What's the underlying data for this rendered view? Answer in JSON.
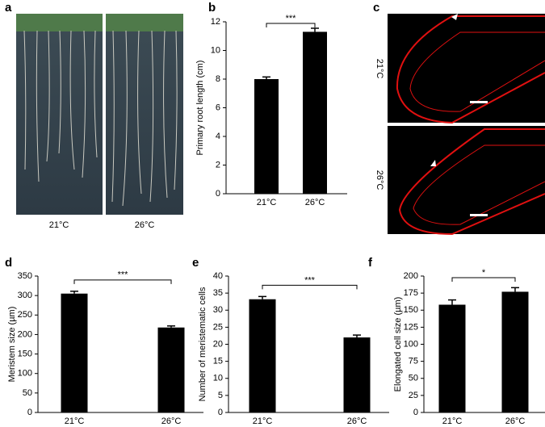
{
  "panel_a": {
    "label": "a",
    "captions": [
      "21°C",
      "26°C"
    ]
  },
  "panel_c": {
    "label": "c",
    "captions": [
      "21°C",
      "26°C"
    ]
  },
  "chart_data": [
    {
      "type": "bar",
      "label": "b",
      "y_label": "Primary root length (cm)",
      "categories": [
        "21°C",
        "26°C"
      ],
      "values": [
        8.0,
        11.3
      ],
      "errors": [
        0.15,
        0.25
      ],
      "color": "#000000",
      "ylim": [
        0,
        12
      ],
      "yticks": [
        0,
        2,
        4,
        6,
        8,
        10,
        12
      ],
      "annotation": "***"
    },
    {
      "type": "bar",
      "label": "d",
      "y_label": "Meristem size (µm)",
      "categories": [
        "21°C",
        "26°C"
      ],
      "values": [
        305,
        218
      ],
      "errors": [
        6,
        4
      ],
      "color": "#000000",
      "ylim": [
        0,
        350
      ],
      "yticks": [
        0,
        50,
        100,
        150,
        200,
        250,
        300,
        350
      ],
      "annotation": "***"
    },
    {
      "type": "bar",
      "label": "e",
      "y_label": "Number of meristematic cells",
      "categories": [
        "21°C",
        "26°C"
      ],
      "values": [
        33.2,
        22.0
      ],
      "errors": [
        0.8,
        0.7
      ],
      "color": "#000000",
      "ylim": [
        0,
        40
      ],
      "yticks": [
        0,
        5,
        10,
        15,
        20,
        25,
        30,
        35,
        40
      ],
      "annotation": "***"
    },
    {
      "type": "bar",
      "label": "f",
      "y_label": "Elongated cell size (µm)",
      "categories": [
        "21°C",
        "26°C"
      ],
      "values": [
        158,
        177
      ],
      "errors": [
        7,
        6
      ],
      "color": "#000000",
      "ylim": [
        0,
        200
      ],
      "yticks": [
        0,
        25,
        50,
        75,
        100,
        125,
        150,
        175,
        200
      ],
      "annotation": "*"
    }
  ]
}
